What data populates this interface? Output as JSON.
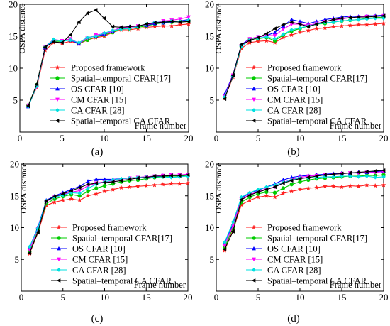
{
  "figure": {
    "ylabel": "OSPA distance",
    "xlabel": "Frame number"
  },
  "legend_entries": [
    {
      "name": "Proposed framework",
      "color": "#ff2020",
      "marker": "star"
    },
    {
      "name": "Spatial–temporal CFAR[17]",
      "color": "#00cc00",
      "marker": "circle"
    },
    {
      "name": "OS CFAR [10]",
      "color": "#0000ff",
      "marker": "triangle"
    },
    {
      "name": "CM CFAR [15]",
      "color": "#ff00ff",
      "marker": "triangle-down"
    },
    {
      "name": "CA CFAR [28]",
      "color": "#00e0e0",
      "marker": "diamond"
    },
    {
      "name": "Spatial–temporal CA CFAR",
      "color": "#000000",
      "marker": "triangle-left"
    }
  ],
  "chart_data": [
    {
      "type": "line",
      "caption": "(a)",
      "ylabel": "OSPA distance",
      "xlabel": "Frame number",
      "xlim": [
        0,
        20
      ],
      "ylim": [
        0,
        20
      ],
      "xticks": [
        0,
        5,
        10,
        15,
        20
      ],
      "yticks": [
        5,
        10,
        15,
        20
      ],
      "grid": false,
      "legend_position": "center",
      "x": [
        1,
        2,
        3,
        4,
        5,
        6,
        7,
        8,
        9,
        10,
        11,
        12,
        13,
        14,
        15,
        16,
        17,
        18,
        19,
        20
      ],
      "series": [
        {
          "name": "Proposed framework",
          "values": [
            4.1,
            7.0,
            12.8,
            14.0,
            13.9,
            14.2,
            13.8,
            14.4,
            14.8,
            15.0,
            15.6,
            16.0,
            16.0,
            16.2,
            16.4,
            16.5,
            16.6,
            16.6,
            16.8,
            16.9
          ]
        },
        {
          "name": "Spatial–temporal CFAR[17]",
          "values": [
            4.2,
            7.4,
            13.3,
            14.2,
            14.2,
            14.5,
            13.9,
            14.4,
            14.9,
            15.2,
            15.6,
            16.2,
            16.2,
            16.4,
            16.6,
            16.9,
            17.1,
            17.2,
            17.3,
            17.4
          ]
        },
        {
          "name": "OS CFAR [10]",
          "values": [
            4.0,
            7.3,
            13.2,
            14.4,
            14.3,
            14.4,
            13.8,
            14.8,
            15.0,
            15.3,
            15.8,
            16.4,
            16.5,
            16.6,
            16.7,
            17.0,
            17.1,
            17.3,
            17.4,
            17.6
          ]
        },
        {
          "name": "CM CFAR [15]",
          "values": [
            4.2,
            7.1,
            13.4,
            14.5,
            14.3,
            14.6,
            13.9,
            14.7,
            15.2,
            15.4,
            15.8,
            16.4,
            16.4,
            16.6,
            16.8,
            17.1,
            17.4,
            17.5,
            17.7,
            18.0
          ]
        },
        {
          "name": "CA CFAR [28]",
          "values": [
            4.0,
            7.2,
            13.3,
            14.5,
            14.2,
            14.4,
            14.0,
            14.8,
            15.0,
            15.5,
            15.9,
            16.1,
            16.2,
            16.5,
            16.9,
            17.2,
            17.2,
            17.4,
            17.3,
            17.5
          ]
        },
        {
          "name": "Spatial–temporal CA CFAR",
          "values": [
            4.1,
            7.5,
            13.3,
            14.1,
            14.0,
            15.2,
            17.2,
            18.6,
            19.1,
            17.8,
            16.5,
            16.4,
            16.5,
            16.6,
            16.9,
            17.1,
            17.2,
            17.3,
            17.2,
            17.3
          ]
        }
      ]
    },
    {
      "type": "line",
      "caption": "(b)",
      "ylabel": "OSPA distance",
      "xlabel": "Frame number",
      "xlim": [
        0,
        20
      ],
      "ylim": [
        0,
        20
      ],
      "xticks": [
        0,
        5,
        10,
        15,
        20
      ],
      "yticks": [
        5,
        10,
        15,
        20
      ],
      "grid": false,
      "legend_position": "center",
      "x": [
        1,
        2,
        3,
        4,
        5,
        6,
        7,
        8,
        9,
        10,
        11,
        12,
        13,
        14,
        15,
        16,
        17,
        18,
        19,
        20
      ],
      "series": [
        {
          "name": "Proposed framework",
          "values": [
            5.3,
            8.6,
            13.1,
            14.0,
            14.2,
            14.3,
            14.0,
            14.8,
            15.2,
            15.6,
            15.9,
            16.2,
            16.3,
            16.5,
            16.6,
            16.7,
            16.8,
            16.8,
            16.9,
            17.0
          ]
        },
        {
          "name": "Spatial–temporal CFAR[17]",
          "values": [
            5.4,
            8.8,
            13.4,
            14.5,
            14.6,
            14.8,
            14.3,
            15.2,
            15.8,
            16.2,
            16.6,
            16.9,
            17.0,
            17.2,
            17.4,
            17.5,
            17.6,
            17.8,
            17.9,
            18.0
          ]
        },
        {
          "name": "OS CFAR [10]",
          "values": [
            5.9,
            9.0,
            13.7,
            14.6,
            14.9,
            15.1,
            15.6,
            16.6,
            17.6,
            17.3,
            17.0,
            17.3,
            17.6,
            17.8,
            18.0,
            18.1,
            18.1,
            18.2,
            18.2,
            18.3
          ]
        },
        {
          "name": "CM CFAR [15]",
          "values": [
            5.6,
            8.9,
            13.5,
            14.6,
            14.9,
            15.1,
            15.1,
            16.1,
            16.9,
            16.9,
            16.7,
            17.0,
            17.3,
            17.5,
            17.7,
            17.9,
            18.0,
            18.1,
            18.1,
            18.2
          ]
        },
        {
          "name": "CA CFAR [28]",
          "values": [
            5.5,
            8.7,
            13.4,
            14.4,
            14.7,
            14.9,
            14.6,
            15.3,
            16.0,
            16.3,
            16.6,
            16.9,
            17.1,
            17.2,
            17.4,
            17.5,
            17.6,
            17.7,
            17.8,
            17.8
          ]
        },
        {
          "name": "Spatial–temporal CA CFAR",
          "values": [
            5.2,
            8.9,
            13.7,
            14.3,
            14.8,
            15.4,
            16.2,
            16.8,
            17.2,
            16.9,
            16.5,
            16.9,
            17.3,
            17.6,
            17.8,
            17.9,
            18.0,
            18.0,
            18.1,
            18.2
          ]
        }
      ]
    },
    {
      "type": "line",
      "caption": "(c)",
      "ylabel": "OSPA distance",
      "xlabel": "Frame number",
      "xlim": [
        0,
        20
      ],
      "ylim": [
        0,
        20
      ],
      "xticks": [
        0,
        5,
        10,
        15,
        20
      ],
      "yticks": [
        5,
        10,
        15,
        20
      ],
      "grid": false,
      "legend_position": "center",
      "x": [
        1,
        2,
        3,
        4,
        5,
        6,
        7,
        8,
        9,
        10,
        11,
        12,
        13,
        14,
        15,
        16,
        17,
        18,
        19,
        20
      ],
      "series": [
        {
          "name": "Proposed framework",
          "values": [
            5.9,
            9.2,
            13.5,
            14.0,
            14.3,
            14.5,
            14.3,
            15.0,
            15.3,
            15.7,
            16.0,
            16.3,
            16.4,
            16.5,
            16.6,
            16.7,
            16.8,
            16.9,
            16.9,
            17.0
          ]
        },
        {
          "name": "Spatial–temporal CFAR[17]",
          "values": [
            6.2,
            9.6,
            13.8,
            14.5,
            14.9,
            15.2,
            15.0,
            15.7,
            16.2,
            16.6,
            16.9,
            17.2,
            17.4,
            17.5,
            17.7,
            17.9,
            18.0,
            18.1,
            18.1,
            18.2
          ]
        },
        {
          "name": "OS CFAR [10]",
          "values": [
            6.9,
            10.1,
            14.3,
            15.0,
            15.5,
            16.0,
            16.5,
            17.3,
            17.6,
            17.6,
            17.6,
            17.7,
            17.8,
            17.9,
            18.0,
            18.1,
            18.2,
            18.2,
            18.3,
            18.3
          ]
        },
        {
          "name": "CM CFAR [15]",
          "values": [
            6.5,
            9.8,
            14.1,
            14.8,
            15.2,
            15.6,
            15.8,
            16.6,
            17.0,
            17.2,
            17.4,
            17.6,
            17.8,
            17.9,
            18.0,
            18.1,
            18.2,
            18.3,
            18.3,
            18.4
          ]
        },
        {
          "name": "CA CFAR [28]",
          "values": [
            7.0,
            9.9,
            14.2,
            14.8,
            15.1,
            15.5,
            15.4,
            16.2,
            16.8,
            17.2,
            17.5,
            17.7,
            17.8,
            17.9,
            17.9,
            18.0,
            18.0,
            17.9,
            18.0,
            18.1
          ]
        },
        {
          "name": "Spatial–temporal CA CFAR",
          "values": [
            6.0,
            9.3,
            14.2,
            14.9,
            15.3,
            15.8,
            16.3,
            16.8,
            17.0,
            17.1,
            17.2,
            17.4,
            17.6,
            17.8,
            17.9,
            18.1,
            18.1,
            18.2,
            18.2,
            18.3
          ]
        }
      ]
    },
    {
      "type": "line",
      "caption": "(d)",
      "ylabel": "OSPA distance",
      "xlabel": "Frame number",
      "xlim": [
        0,
        20
      ],
      "ylim": [
        0,
        20
      ],
      "xticks": [
        0,
        5,
        10,
        15,
        20
      ],
      "yticks": [
        5,
        10,
        15,
        20
      ],
      "grid": false,
      "legend_position": "center",
      "x": [
        1,
        2,
        3,
        4,
        5,
        6,
        7,
        8,
        9,
        10,
        11,
        12,
        13,
        14,
        15,
        16,
        17,
        18,
        19,
        20
      ],
      "series": [
        {
          "name": "Proposed framework",
          "values": [
            6.4,
            9.6,
            13.6,
            14.3,
            14.8,
            15.0,
            14.8,
            15.4,
            15.7,
            16.0,
            16.2,
            16.3,
            16.5,
            16.5,
            16.4,
            16.6,
            16.5,
            16.7,
            16.6,
            16.7
          ]
        },
        {
          "name": "Spatial–temporal CFAR[17]",
          "values": [
            6.8,
            10.0,
            14.0,
            14.8,
            15.3,
            15.6,
            15.5,
            16.2,
            16.8,
            17.2,
            17.5,
            17.7,
            17.8,
            17.9,
            18.0,
            18.1,
            18.1,
            18.2,
            18.2,
            18.3
          ]
        },
        {
          "name": "OS CFAR [10]",
          "values": [
            7.6,
            10.6,
            14.7,
            15.4,
            15.9,
            16.4,
            16.9,
            17.5,
            17.9,
            18.1,
            18.2,
            18.3,
            18.4,
            18.5,
            18.6,
            18.6,
            18.7,
            18.7,
            18.8,
            18.9
          ]
        },
        {
          "name": "CM CFAR [15]",
          "values": [
            7.2,
            10.3,
            14.5,
            15.2,
            15.7,
            16.1,
            16.4,
            17.1,
            17.6,
            17.9,
            18.1,
            18.2,
            18.3,
            18.4,
            18.5,
            18.6,
            18.6,
            18.7,
            18.7,
            18.8
          ]
        },
        {
          "name": "CA CFAR [28]",
          "values": [
            7.7,
            10.9,
            14.8,
            15.5,
            16.0,
            16.4,
            16.7,
            17.1,
            17.5,
            17.8,
            17.8,
            17.9,
            18.0,
            18.0,
            18.1,
            18.1,
            18.0,
            18.1,
            17.9,
            18.0
          ]
        },
        {
          "name": "Spatial–temporal CA CFAR",
          "values": [
            6.6,
            9.4,
            14.4,
            15.1,
            15.6,
            16.0,
            16.4,
            17.0,
            17.4,
            17.7,
            17.9,
            18.1,
            18.3,
            18.4,
            18.5,
            18.6,
            18.7,
            18.8,
            18.9,
            19.0
          ]
        }
      ]
    }
  ]
}
